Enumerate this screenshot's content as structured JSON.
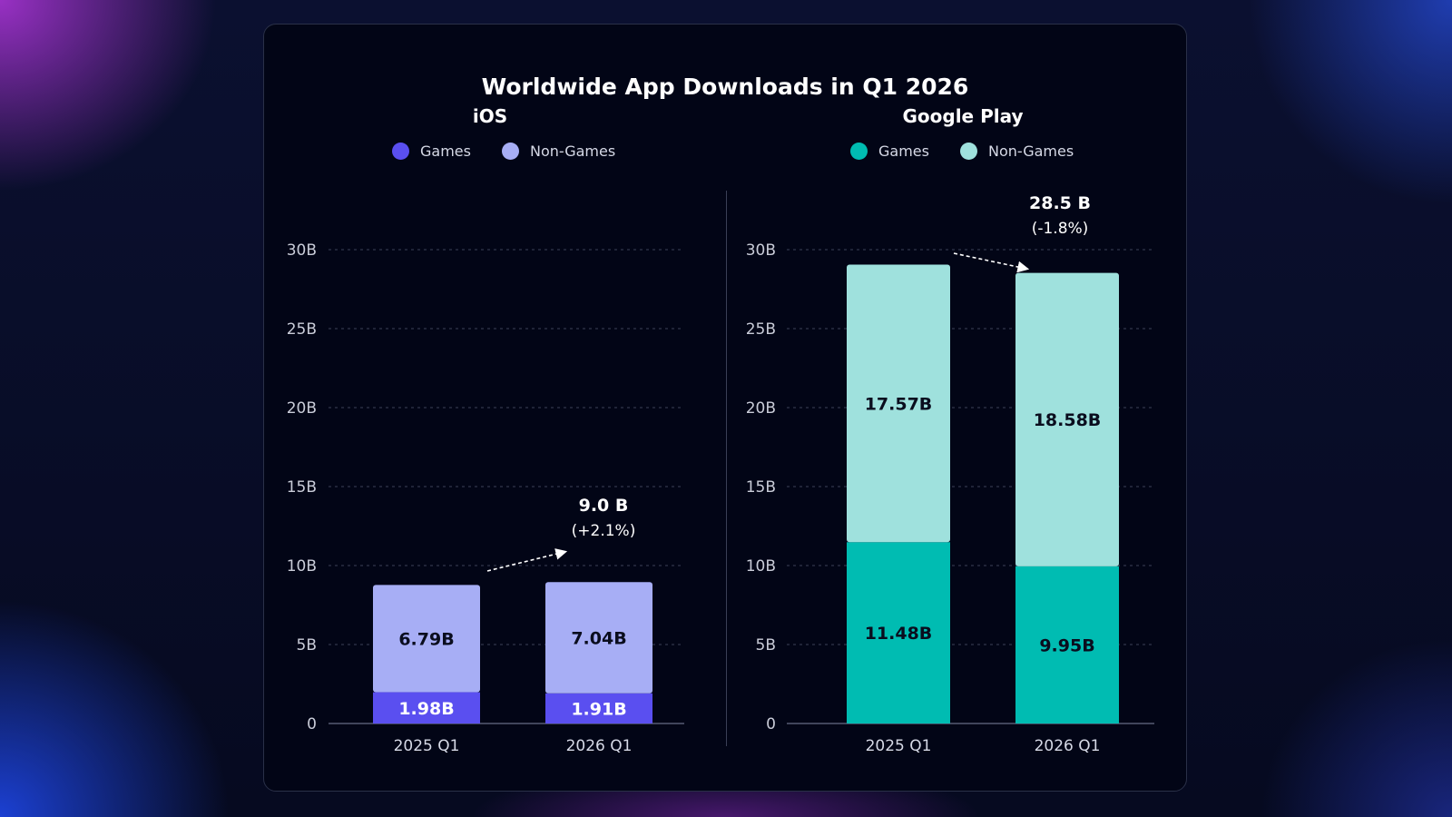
{
  "chart_data": {
    "title": "Worldwide App Downloads in Q1 2026",
    "type": "bar",
    "stacked": true,
    "grid": true,
    "yticks": [
      "30B",
      "25B",
      "20B",
      "15B",
      "10B",
      "5B",
      "0"
    ],
    "ylim": [
      0,
      30
    ],
    "colors": {
      "ios_games": "#5a4ff0",
      "ios_non_games": "#a7aef5",
      "gp_games": "#00bcb2",
      "gp_non_games": "#9fe1dd",
      "segment_text_dark": "#0a0d1e",
      "segment_text_light": "#ffffff"
    },
    "panels": [
      {
        "name": "iOS",
        "categories": [
          "2025 Q1",
          "2026 Q1"
        ],
        "legend": [
          {
            "label": "Games",
            "color": "#5a4ff0"
          },
          {
            "label": "Non-Games",
            "color": "#a7aef5"
          }
        ],
        "series": [
          {
            "name": "Games",
            "values": [
              1.98,
              1.91
            ],
            "labels": [
              "1.98B",
              "1.91B"
            ]
          },
          {
            "name": "Non-Games",
            "values": [
              6.79,
              7.04
            ],
            "labels": [
              "6.79B",
              "7.04B"
            ]
          }
        ],
        "annotation": {
          "total": "9.0 B",
          "change": "(+2.1%)"
        }
      },
      {
        "name": "Google Play",
        "categories": [
          "2025 Q1",
          "2026 Q1"
        ],
        "legend": [
          {
            "label": "Games",
            "color": "#00bcb2"
          },
          {
            "label": "Non-Games",
            "color": "#9fe1dd"
          }
        ],
        "series": [
          {
            "name": "Games",
            "values": [
              11.48,
              9.95
            ],
            "labels": [
              "11.48B",
              "9.95B"
            ]
          },
          {
            "name": "Non-Games",
            "values": [
              17.57,
              18.58
            ],
            "labels": [
              "17.57B",
              "18.58B"
            ]
          }
        ],
        "annotation": {
          "total": "28.5 B",
          "change": "(-1.8%)"
        }
      }
    ]
  }
}
